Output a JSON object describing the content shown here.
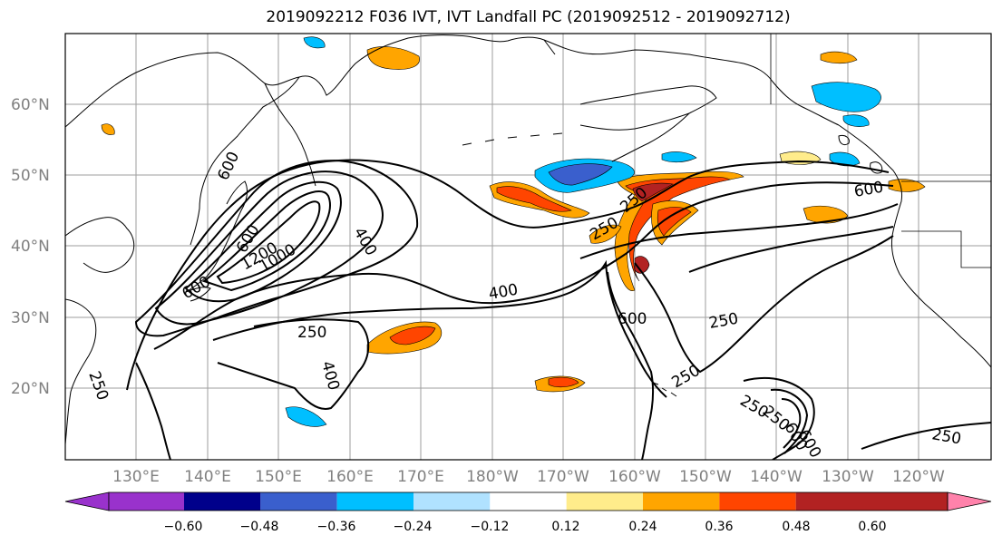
{
  "title": "2019092212 F036 IVT, IVT Landfall PC (2019092512 - 2019092712)",
  "lat_labels": [
    "60°N",
    "50°N",
    "40°N",
    "30°N",
    "20°N"
  ],
  "lon_labels": [
    "130°E",
    "140°E",
    "150°E",
    "160°E",
    "170°E",
    "180°W",
    "170°W",
    "160°W",
    "150°W",
    "140°W",
    "130°W",
    "120°W"
  ],
  "colorbar": {
    "tick_labels": [
      "−0.60",
      "−0.48",
      "−0.36",
      "−0.24",
      "−0.12",
      "0.12",
      "0.24",
      "0.36",
      "0.48",
      "0.60"
    ],
    "colors": [
      "#9932cc",
      "#00008b",
      "#3a5fcd",
      "#00bfff",
      "#b0e2ff",
      "#ffffff",
      "#ffec8b",
      "#ffa500",
      "#ff4500",
      "#b22222",
      "#ff82ab"
    ]
  },
  "contour_labels": [
    "600",
    "1000",
    "250",
    "400",
    "250",
    "600",
    "400",
    "250",
    "250",
    "250",
    "600",
    "250",
    "600",
    "250",
    "1200",
    "600",
    "400",
    "600",
    "250",
    "250",
    "600"
  ]
}
